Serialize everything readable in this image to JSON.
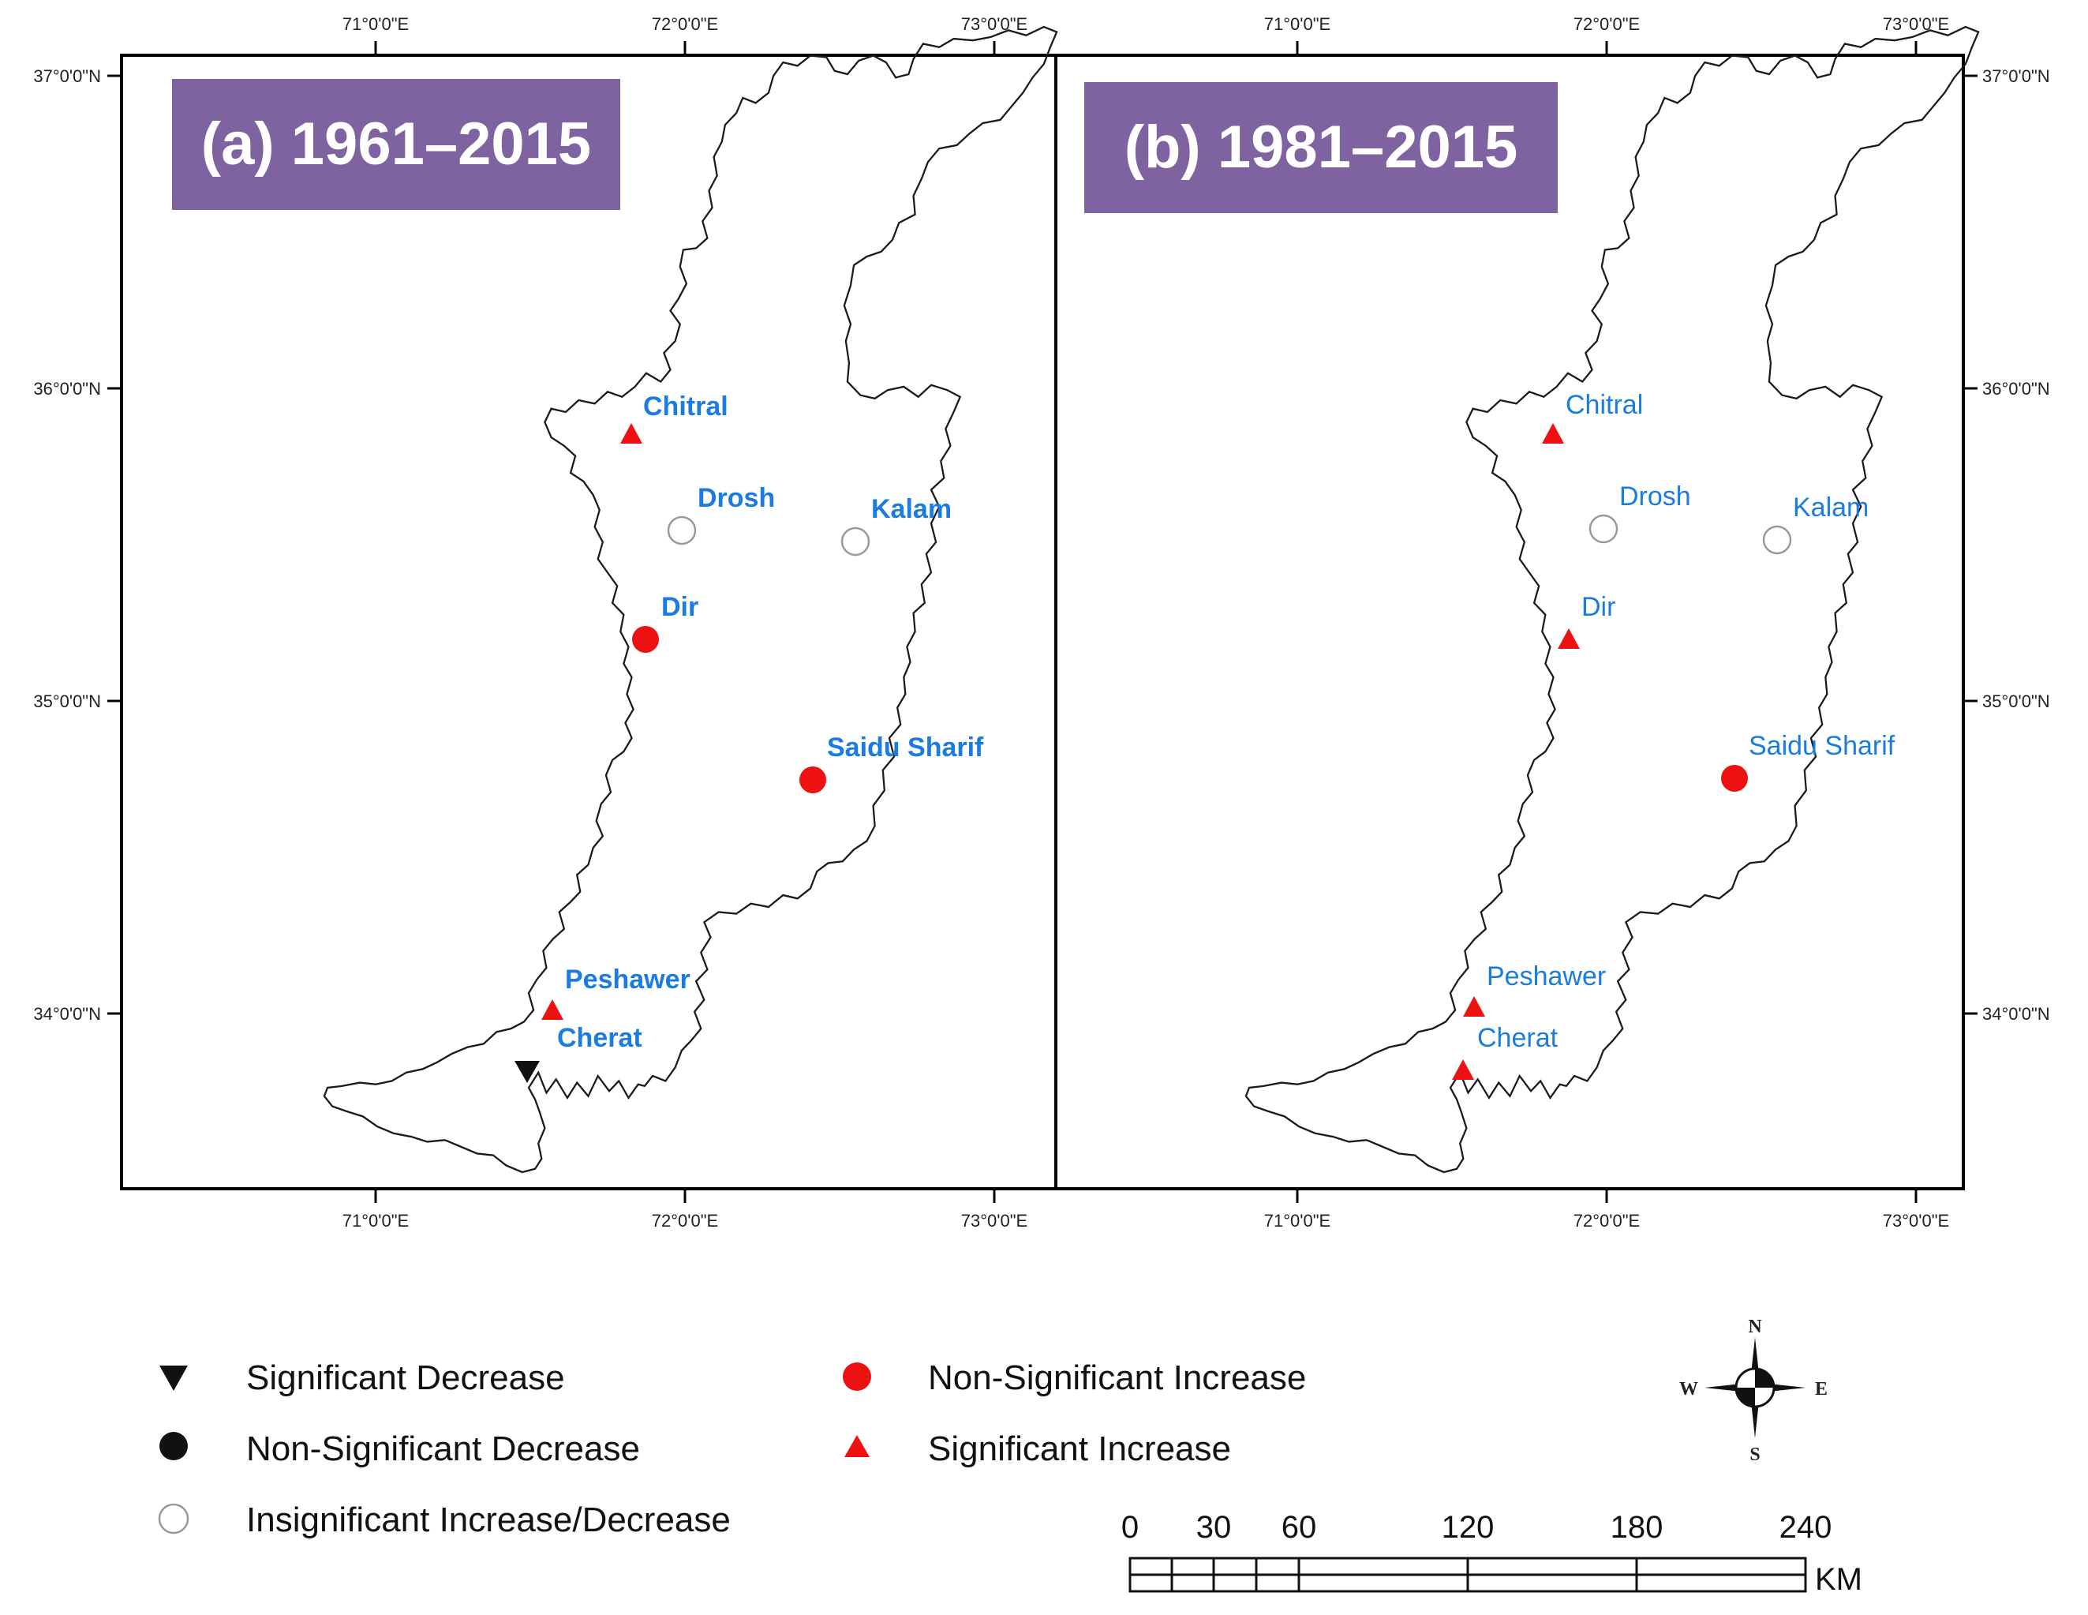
{
  "panels": [
    {
      "title": "(a) 1961–2015",
      "stations": [
        {
          "name": "Chitral",
          "symbol": "sig-increase"
        },
        {
          "name": "Drosh",
          "symbol": "insig"
        },
        {
          "name": "Kalam",
          "symbol": "insig"
        },
        {
          "name": "Dir",
          "symbol": "nonsig-increase"
        },
        {
          "name": "Saidu Sharif",
          "symbol": "nonsig-increase"
        },
        {
          "name": "Peshawer",
          "symbol": "sig-increase"
        },
        {
          "name": "Cherat",
          "symbol": "sig-decrease"
        }
      ]
    },
    {
      "title": "(b) 1981–2015",
      "stations": [
        {
          "name": "Chitral",
          "symbol": "sig-increase"
        },
        {
          "name": "Drosh",
          "symbol": "insig"
        },
        {
          "name": "Kalam",
          "symbol": "insig"
        },
        {
          "name": "Dir",
          "symbol": "sig-increase"
        },
        {
          "name": "Saidu Sharif",
          "symbol": "nonsig-increase"
        },
        {
          "name": "Peshawer",
          "symbol": "sig-increase"
        },
        {
          "name": "Cherat",
          "symbol": "sig-increase"
        }
      ]
    }
  ],
  "axes": {
    "lon_labels": [
      "71°0'0\"E",
      "72°0'0\"E",
      "73°0'0\"E"
    ],
    "lat_labels": [
      "37°0'0\"N",
      "36°0'0\"N",
      "35°0'0\"N",
      "34°0'0\"N"
    ]
  },
  "legend": {
    "sig_decrease": "Significant Decrease",
    "nonsig_decrease": "Non-Significant Decrease",
    "insig": "Insignificant Increase/Decrease",
    "nonsig_increase": "Non-Significant Increase",
    "sig_increase": "Significant Increase"
  },
  "compass": {
    "n": "N",
    "s": "S",
    "e": "E",
    "w": "W"
  },
  "scale_bar": {
    "ticks": [
      "0",
      "30",
      "60",
      "120",
      "180",
      "240"
    ],
    "unit": "KM"
  },
  "colors": {
    "title_bg": "#7f63a1",
    "station_label": "#1a7be0",
    "increase": "#ee1111",
    "decrease": "#111111",
    "insig_stroke": "#9a9a9a"
  }
}
